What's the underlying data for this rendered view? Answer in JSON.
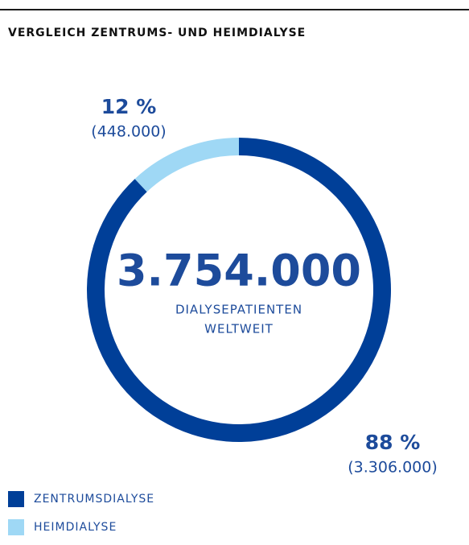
{
  "chart_data": {
    "type": "pie",
    "title": "VERGLEICH ZENTRUMS- UND HEIMDIALYSE",
    "categories": [
      "ZENTRUMSDIALYSE",
      "HEIMDIALYSE"
    ],
    "values": [
      88,
      12
    ],
    "value_labels": [
      "88 %",
      "12 %"
    ],
    "counts": [
      3306000,
      448000
    ],
    "count_labels": [
      "(3.306.000)",
      "(448.000)"
    ],
    "colors": [
      "#003f98",
      "#9fd8f5"
    ],
    "total": 3754000,
    "total_label": "3.754.000",
    "center_text": [
      "DIALYSEPATIENTEN",
      "WELTWEIT"
    ]
  }
}
